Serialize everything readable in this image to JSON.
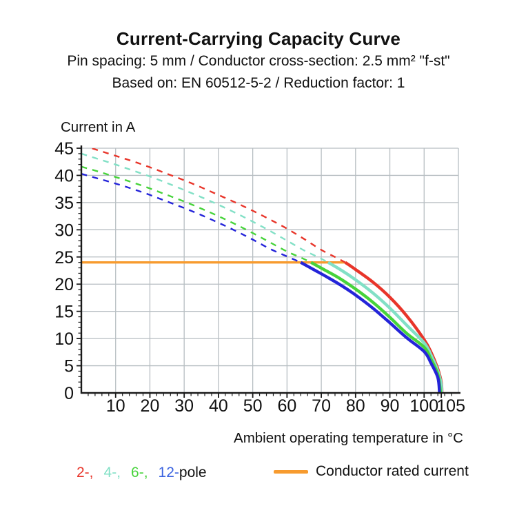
{
  "header": {
    "title": "Current-Carrying Capacity Curve",
    "subtitle1": "Pin spacing: 5 mm / Conductor cross-section: 2.5 mm² \"f-st\"",
    "subtitle2": "Based on: EN 60512-5-2 / Reduction factor: 1"
  },
  "chart_data": {
    "type": "line",
    "ylabel": "Current in A",
    "xlabel": "Ambient operating temperature in °C",
    "xlim": [
      0,
      110
    ],
    "ylim": [
      0,
      45
    ],
    "x_ticks": [
      10,
      20,
      30,
      40,
      50,
      60,
      70,
      80,
      90,
      100,
      105
    ],
    "y_ticks": [
      0,
      5,
      10,
      15,
      20,
      25,
      30,
      35,
      40,
      45
    ],
    "grid": true,
    "grid_color": "#B7BEC2",
    "axis_color": "#1A1A1A",
    "rated_current": {
      "label": "Conductor rated current",
      "value": 24,
      "x_start": 0,
      "x_end": 77,
      "color": "#F79B2F"
    },
    "series": [
      {
        "name": "2-pole",
        "color": "#E8352A",
        "dashed_points": [
          [
            0,
            45.6
          ],
          [
            5,
            44.6
          ],
          [
            10,
            43.6
          ],
          [
            15,
            42.6
          ],
          [
            20,
            41.5
          ],
          [
            25,
            40.3
          ],
          [
            30,
            39.1
          ],
          [
            35,
            37.8
          ],
          [
            40,
            36.4
          ],
          [
            45,
            35.0
          ],
          [
            50,
            33.5
          ],
          [
            55,
            31.9
          ],
          [
            60,
            30.2
          ],
          [
            65,
            28.3
          ],
          [
            70,
            26.3
          ],
          [
            74,
            25.0
          ],
          [
            77,
            24.0
          ]
        ],
        "solid_points": [
          [
            77,
            24.0
          ],
          [
            80,
            22.7
          ],
          [
            85,
            20.4
          ],
          [
            90,
            17.6
          ],
          [
            95,
            14.1
          ],
          [
            100,
            9.8
          ],
          [
            102,
            7.5
          ],
          [
            104,
            4.4
          ],
          [
            105,
            2.0
          ],
          [
            105.2,
            0
          ]
        ]
      },
      {
        "name": "4-pole",
        "color": "#82E0C6",
        "dashed_points": [
          [
            0,
            44.0
          ],
          [
            5,
            43.0
          ],
          [
            10,
            42.0
          ],
          [
            15,
            40.9
          ],
          [
            20,
            39.8
          ],
          [
            25,
            38.6
          ],
          [
            30,
            37.3
          ],
          [
            35,
            36.0
          ],
          [
            40,
            34.6
          ],
          [
            45,
            33.1
          ],
          [
            50,
            31.5
          ],
          [
            55,
            29.8
          ],
          [
            60,
            28.0
          ],
          [
            65,
            26.2
          ],
          [
            69,
            25.0
          ],
          [
            72,
            24.0
          ]
        ],
        "solid_points": [
          [
            72,
            24.0
          ],
          [
            76,
            22.5
          ],
          [
            80,
            20.8
          ],
          [
            85,
            18.4
          ],
          [
            90,
            15.6
          ],
          [
            95,
            12.4
          ],
          [
            100,
            9.2
          ],
          [
            102,
            7.0
          ],
          [
            104,
            4.0
          ],
          [
            105,
            1.6
          ],
          [
            105.1,
            0
          ]
        ]
      },
      {
        "name": "6-pole",
        "color": "#47D33B",
        "dashed_points": [
          [
            0,
            41.6
          ],
          [
            5,
            40.7
          ],
          [
            10,
            39.7
          ],
          [
            15,
            38.7
          ],
          [
            20,
            37.6
          ],
          [
            25,
            36.4
          ],
          [
            30,
            35.2
          ],
          [
            35,
            33.9
          ],
          [
            40,
            32.5
          ],
          [
            45,
            31.0
          ],
          [
            50,
            29.4
          ],
          [
            55,
            27.7
          ],
          [
            60,
            26.0
          ],
          [
            64,
            24.9
          ],
          [
            67,
            24.0
          ]
        ],
        "solid_points": [
          [
            67,
            24.0
          ],
          [
            71,
            22.6
          ],
          [
            75,
            21.2
          ],
          [
            80,
            19.1
          ],
          [
            85,
            16.7
          ],
          [
            90,
            13.9
          ],
          [
            95,
            10.9
          ],
          [
            100,
            8.4
          ],
          [
            102,
            6.2
          ],
          [
            104,
            3.4
          ],
          [
            104.8,
            0
          ]
        ]
      },
      {
        "name": "12-pole",
        "color": "#2424D9",
        "dashed_points": [
          [
            0,
            40.3
          ],
          [
            5,
            39.4
          ],
          [
            10,
            38.5
          ],
          [
            15,
            37.5
          ],
          [
            20,
            36.4
          ],
          [
            25,
            35.2
          ],
          [
            30,
            34.0
          ],
          [
            35,
            32.7
          ],
          [
            40,
            31.3
          ],
          [
            45,
            29.8
          ],
          [
            50,
            28.2
          ],
          [
            55,
            26.5
          ],
          [
            60,
            25.1
          ],
          [
            64,
            24.0
          ]
        ],
        "solid_points": [
          [
            64,
            24.0
          ],
          [
            68,
            22.6
          ],
          [
            72,
            21.2
          ],
          [
            76,
            19.7
          ],
          [
            80,
            18.0
          ],
          [
            85,
            15.6
          ],
          [
            90,
            12.9
          ],
          [
            95,
            10.1
          ],
          [
            100,
            7.6
          ],
          [
            102,
            5.5
          ],
          [
            104,
            2.8
          ],
          [
            104.5,
            0
          ]
        ]
      }
    ]
  },
  "legend": {
    "pole_items": [
      {
        "label": "2-,",
        "color": "#E8352A"
      },
      {
        "label": "4-,",
        "color": "#82E0C6"
      },
      {
        "label": "6-,",
        "color": "#47D33B"
      },
      {
        "label": "12-",
        "color": "#3B63E0"
      }
    ],
    "pole_suffix": "pole",
    "rated_label": "Conductor rated current"
  }
}
